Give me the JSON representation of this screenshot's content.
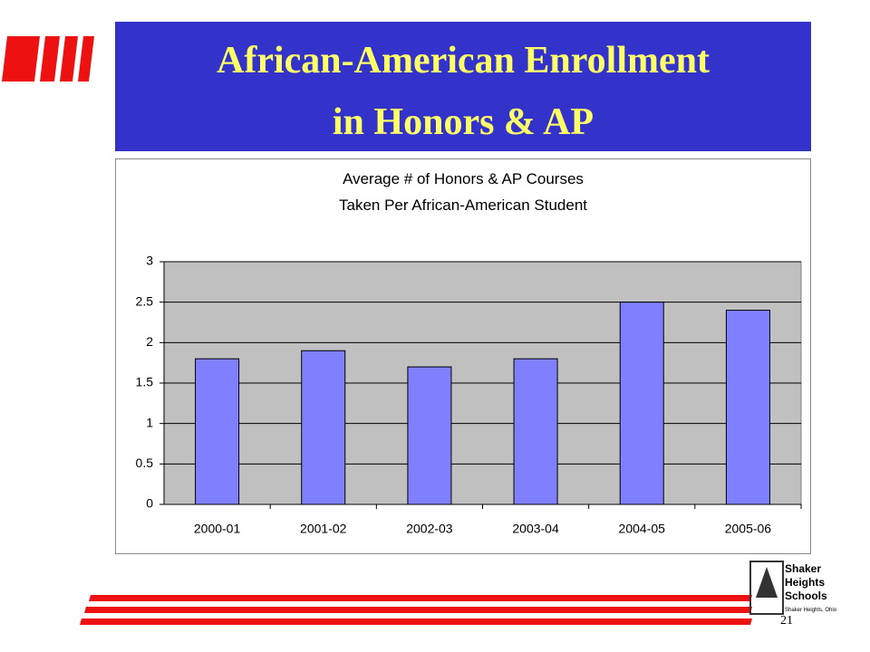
{
  "slide": {
    "title_lines": [
      "African-American Enrollment",
      "in Honors & AP"
    ],
    "page_number": "21",
    "logo_lines": [
      "Shaker",
      "Heights",
      "Schools"
    ],
    "logo_caption": "Shaker Heights, Ohio"
  },
  "chart_data": {
    "type": "bar",
    "title_lines": [
      "Average # of Honors & AP Courses",
      "Taken Per African-American Student"
    ],
    "categories": [
      "2000-01",
      "2001-02",
      "2002-03",
      "2003-04",
      "2004-05",
      "2005-06"
    ],
    "values": [
      1.8,
      1.9,
      1.7,
      1.8,
      2.5,
      2.4
    ],
    "color": "#8080ff",
    "ylim": [
      0,
      3
    ],
    "yticks": [
      0,
      0.5,
      1,
      1.5,
      2,
      2.5,
      3
    ],
    "grid": true
  }
}
